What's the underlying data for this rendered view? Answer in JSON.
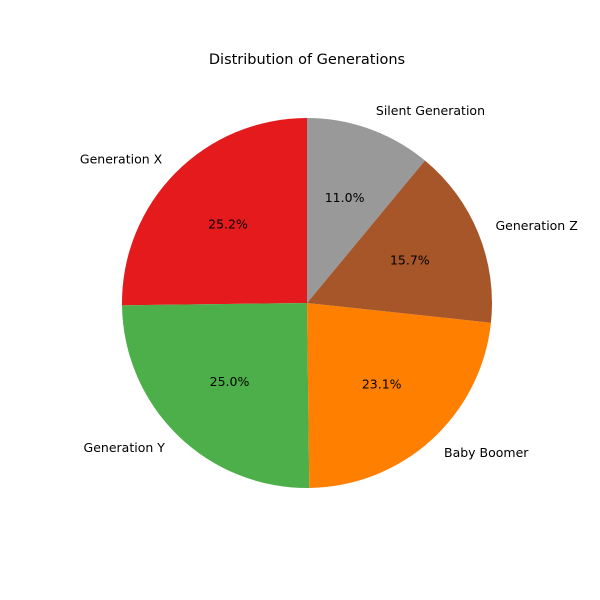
{
  "chart_data": {
    "type": "pie",
    "title": "Distribution of Generations",
    "start_angle_deg": 90,
    "direction": "counterclockwise",
    "legend": "none",
    "slices": [
      {
        "label": "Generation X",
        "value": 25.2,
        "pct_label": "25.2%",
        "color": "#e41a1c"
      },
      {
        "label": "Generation Y",
        "value": 25.0,
        "pct_label": "25.0%",
        "color": "#4daf4a"
      },
      {
        "label": "Baby Boomer",
        "value": 23.1,
        "pct_label": "23.1%",
        "color": "#ff7f00"
      },
      {
        "label": "Generation Z",
        "value": 15.7,
        "pct_label": "15.7%",
        "color": "#a65628"
      },
      {
        "label": "Silent Generation",
        "value": 11.0,
        "pct_label": "11.0%",
        "color": "#999999"
      }
    ]
  }
}
